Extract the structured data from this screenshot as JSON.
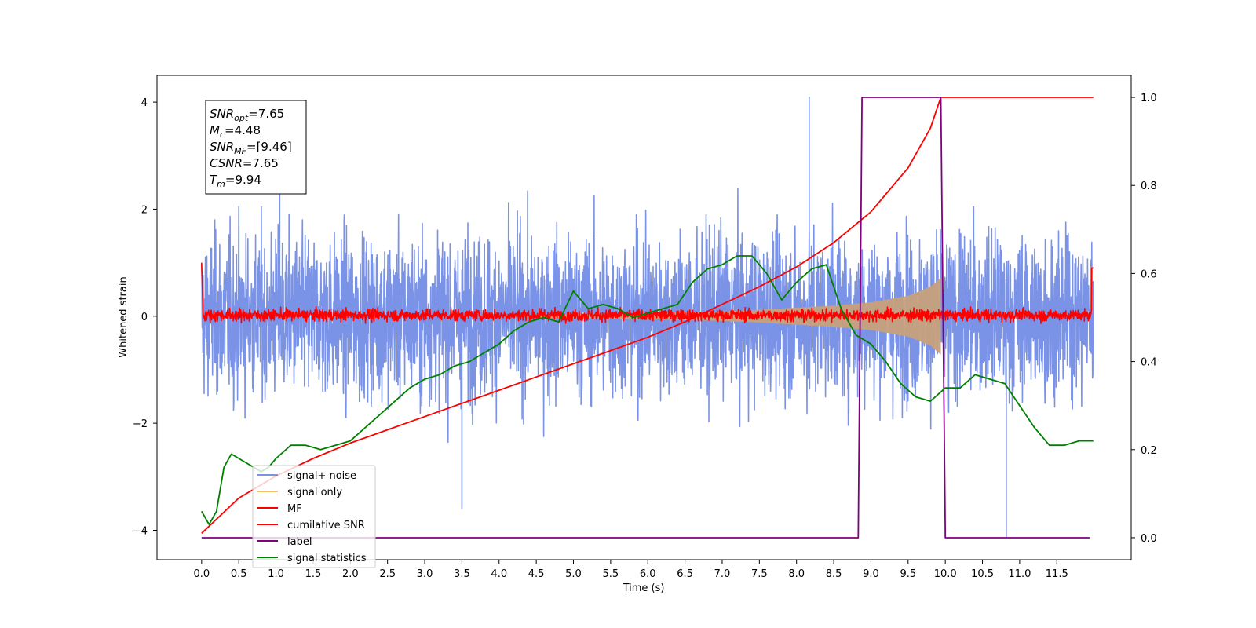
{
  "chart_data": {
    "type": "line",
    "xlabel": "Time (s)",
    "ylabel": "Whitened strain",
    "xlim": [
      -0.6,
      12.5
    ],
    "ylim": [
      -4.55,
      4.5
    ],
    "ylim_right": [
      -0.05,
      1.05
    ],
    "x_ticks": [
      0.0,
      0.5,
      1.0,
      1.5,
      2.0,
      2.5,
      3.0,
      3.5,
      4.0,
      4.5,
      5.0,
      5.5,
      6.0,
      6.5,
      7.0,
      7.5,
      8.0,
      8.5,
      9.0,
      9.5,
      10.0,
      10.5,
      11.0,
      11.5
    ],
    "x_tick_labels": [
      "0.0",
      "0.5",
      "1.0",
      "1.5",
      "2.0",
      "2.5",
      "3.0",
      "3.5",
      "4.0",
      "4.5",
      "5.0",
      "5.5",
      "6.0",
      "6.5",
      "7.0",
      "7.5",
      "8.0",
      "8.5",
      "9.0",
      "9.5",
      "10.0",
      "10.5",
      "11.0",
      "11.5"
    ],
    "y_ticks": [
      -4,
      -2,
      0,
      2,
      4
    ],
    "y_tick_labels": [
      "−4",
      "−2",
      "0",
      "2",
      "4"
    ],
    "y_right_ticks": [
      0.0,
      0.2,
      0.4,
      0.6,
      0.8,
      1.0
    ],
    "y_right_tick_labels": [
      "0.0",
      "0.2",
      "0.4",
      "0.6",
      "0.8",
      "1.0"
    ],
    "grid": false,
    "legend_position": "lower-left",
    "annotation": {
      "lines": [
        {
          "base": "SNR",
          "sub": "opt",
          "rest": "=7.65"
        },
        {
          "base": "M",
          "sub": "c",
          "rest": "=4.48"
        },
        {
          "base": "SNR",
          "sub": "MF",
          "rest": "=[9.46]"
        },
        {
          "base": "CSNR",
          "sub": "",
          "rest": "=7.65"
        },
        {
          "base": "T",
          "sub": "m",
          "rest": "=9.94"
        }
      ]
    },
    "series": [
      {
        "name": "signal+ noise",
        "color": "#7b93e6",
        "axis": "left",
        "kind": "noise_band",
        "t_range": [
          0.0,
          11.99
        ],
        "typical_amplitude": [
          -1.6,
          1.6
        ],
        "peaks": [
          {
            "x": 8.17,
            "y": 4.1
          },
          {
            "x": 10.82,
            "y": -4.15
          },
          {
            "x": 3.5,
            "y": -3.6
          },
          {
            "x": 1.05,
            "y": 3.55
          }
        ]
      },
      {
        "name": "signal only",
        "color": "#f5c16b",
        "axis": "left",
        "kind": "chirp_envelope",
        "t_start": 4.2,
        "t_merger": 9.94,
        "envelope_x": [
          4.2,
          5.0,
          6.0,
          7.0,
          7.5,
          8.0,
          8.5,
          9.0,
          9.5,
          9.8,
          9.94
        ],
        "envelope_y": [
          0.02,
          0.04,
          0.06,
          0.09,
          0.12,
          0.16,
          0.2,
          0.26,
          0.38,
          0.55,
          0.72
        ]
      },
      {
        "name": "MF",
        "color": "#ff0000",
        "axis": "left",
        "kind": "noise_band",
        "t_range": [
          0.0,
          11.99
        ],
        "typical_amplitude": [
          -0.15,
          0.2
        ]
      },
      {
        "name": "cumilative SNR",
        "color": "#ff0000",
        "axis": "right",
        "x": [
          0.0,
          0.5,
          1.0,
          1.5,
          2.0,
          2.5,
          3.0,
          3.5,
          4.0,
          4.5,
          5.0,
          5.5,
          6.0,
          6.5,
          7.0,
          7.5,
          8.0,
          8.5,
          9.0,
          9.5,
          9.8,
          9.94,
          10.0,
          11.5,
          11.99
        ],
        "y": [
          0.01,
          0.09,
          0.14,
          0.18,
          0.215,
          0.245,
          0.275,
          0.305,
          0.335,
          0.365,
          0.395,
          0.425,
          0.455,
          0.49,
          0.53,
          0.57,
          0.615,
          0.67,
          0.74,
          0.84,
          0.93,
          1.0,
          1.0,
          1.0,
          1.0
        ]
      },
      {
        "name": "label",
        "color": "#800080",
        "axis": "right",
        "x": [
          0.0,
          8.83,
          8.88,
          9.94,
          10.0,
          11.94
        ],
        "y": [
          0.0,
          0.0,
          1.0,
          1.0,
          0.0,
          0.0
        ]
      },
      {
        "name": "signal statistics",
        "color": "#008000",
        "axis": "right",
        "x": [
          0.0,
          0.1,
          0.2,
          0.3,
          0.4,
          0.5,
          0.6,
          0.7,
          0.8,
          0.9,
          1.0,
          1.2,
          1.4,
          1.6,
          1.8,
          2.0,
          2.2,
          2.4,
          2.6,
          2.8,
          3.0,
          3.2,
          3.4,
          3.6,
          3.8,
          4.0,
          4.2,
          4.4,
          4.6,
          4.8,
          5.0,
          5.2,
          5.4,
          5.6,
          5.8,
          6.0,
          6.2,
          6.4,
          6.6,
          6.8,
          7.0,
          7.2,
          7.4,
          7.6,
          7.8,
          8.0,
          8.2,
          8.4,
          8.6,
          8.8,
          9.0,
          9.2,
          9.4,
          9.6,
          9.8,
          10.0,
          10.2,
          10.4,
          10.6,
          10.8,
          11.0,
          11.2,
          11.4,
          11.6,
          11.8,
          11.99
        ],
        "y": [
          0.06,
          0.03,
          0.06,
          0.16,
          0.19,
          0.18,
          0.17,
          0.16,
          0.15,
          0.16,
          0.18,
          0.21,
          0.21,
          0.2,
          0.21,
          0.22,
          0.25,
          0.28,
          0.31,
          0.34,
          0.36,
          0.37,
          0.39,
          0.4,
          0.42,
          0.44,
          0.47,
          0.49,
          0.5,
          0.49,
          0.56,
          0.52,
          0.53,
          0.52,
          0.5,
          0.51,
          0.52,
          0.53,
          0.58,
          0.61,
          0.62,
          0.64,
          0.64,
          0.6,
          0.54,
          0.58,
          0.61,
          0.62,
          0.52,
          0.46,
          0.44,
          0.4,
          0.35,
          0.32,
          0.31,
          0.34,
          0.34,
          0.37,
          0.36,
          0.35,
          0.3,
          0.25,
          0.21,
          0.21,
          0.22,
          0.22
        ]
      }
    ]
  }
}
